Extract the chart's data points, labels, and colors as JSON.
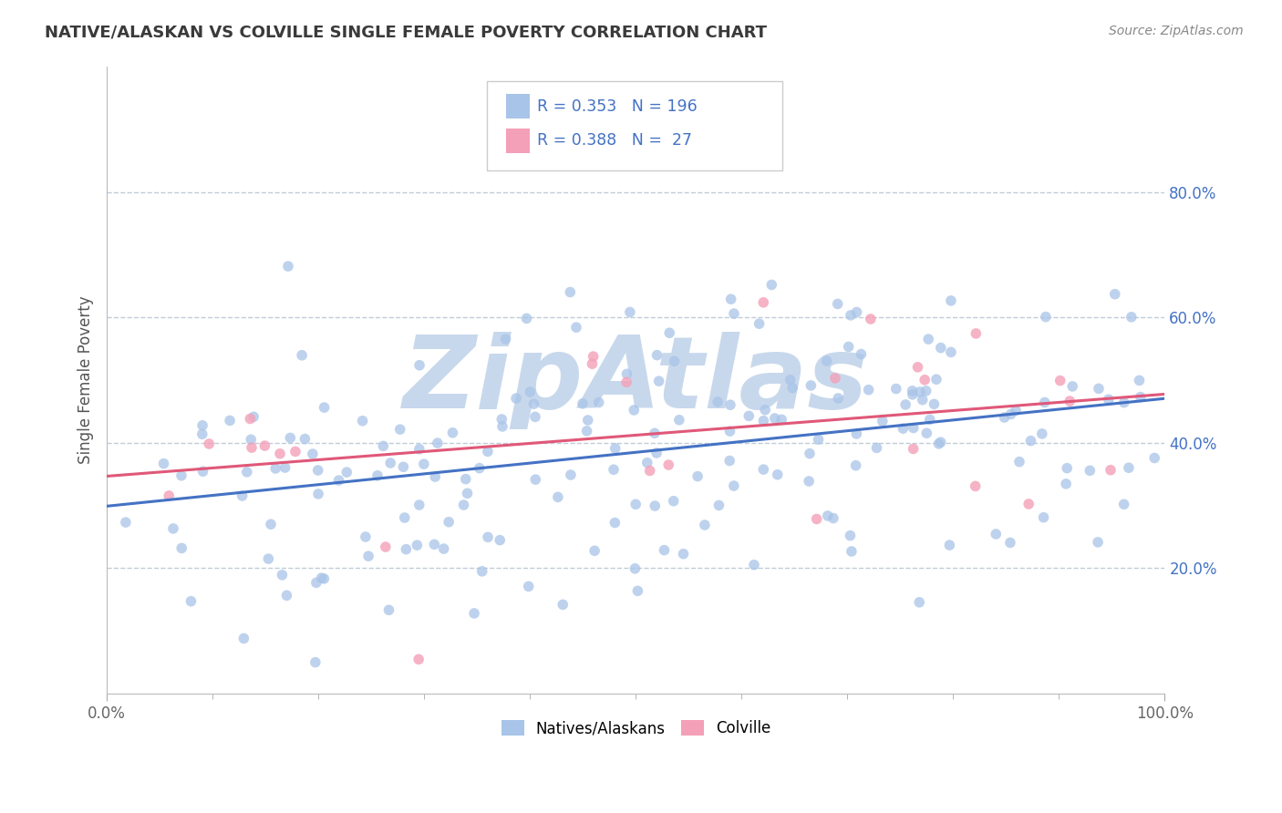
{
  "title": "NATIVE/ALASKAN VS COLVILLE SINGLE FEMALE POVERTY CORRELATION CHART",
  "source": "Source: ZipAtlas.com",
  "ylabel": "Single Female Poverty",
  "xlim": [
    0,
    1
  ],
  "ylim": [
    0.0,
    1.0
  ],
  "ytick_labels": [
    "20.0%",
    "40.0%",
    "60.0%",
    "80.0%"
  ],
  "ytick_positions": [
    0.2,
    0.4,
    0.6,
    0.8
  ],
  "legend_r1": "R = 0.353",
  "legend_n1": "N = 196",
  "legend_r2": "R = 0.388",
  "legend_n2": "N =  27",
  "blue_color": "#A8C4E8",
  "pink_color": "#F4A0B8",
  "blue_line_color": "#4472C4",
  "pink_line_color": "#E05878",
  "title_color": "#3A3A3A",
  "watermark_color": "#C8D8EC",
  "watermark_text": "ZipAtlas",
  "background_color": "#FFFFFF",
  "grid_color": "#C0CCD8",
  "seed_blue": 12345,
  "seed_pink": 9876,
  "R_blue": 0.353,
  "N_blue": 196,
  "R_pink": 0.388,
  "N_pink": 27,
  "blue_scatter_alpha": 0.75,
  "pink_scatter_alpha": 0.8,
  "scatter_size": 70,
  "blue_intercept": 0.305,
  "blue_slope": 0.155,
  "pink_intercept": 0.28,
  "pink_slope": 0.22,
  "blue_noise_std": 0.13,
  "pink_noise_std": 0.11
}
